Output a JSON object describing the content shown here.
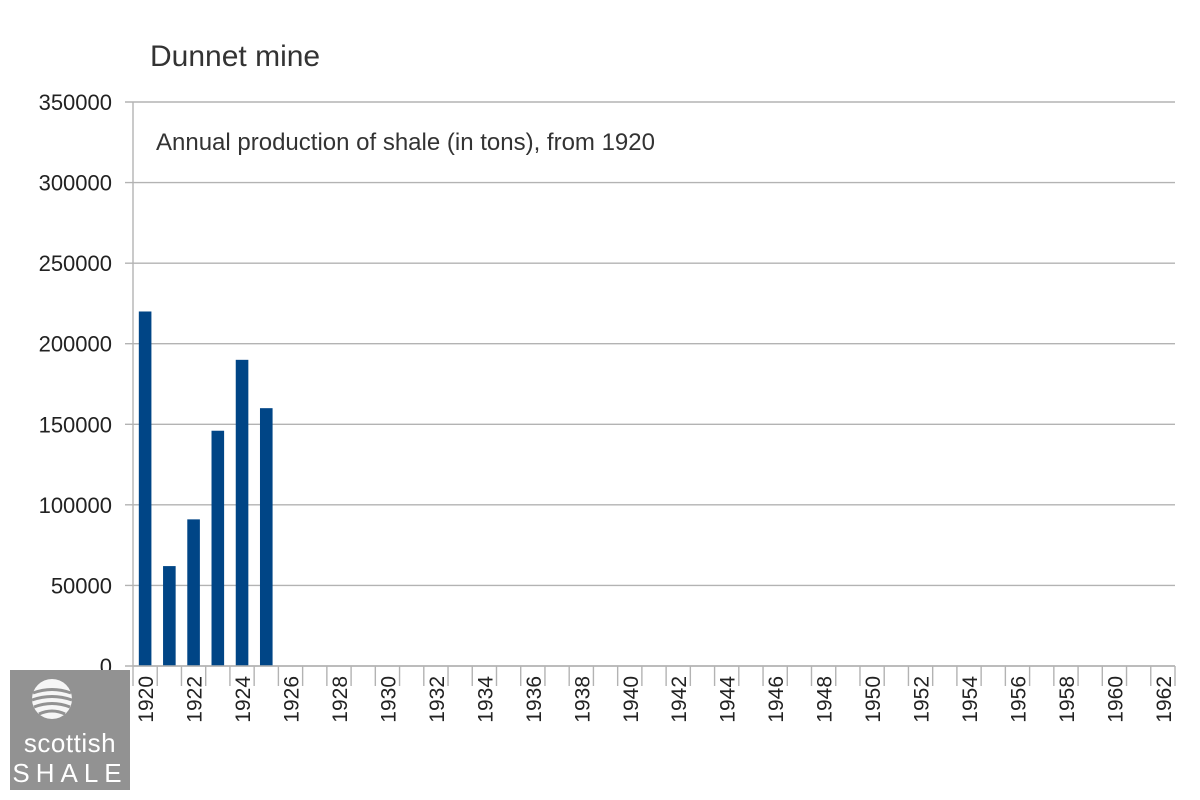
{
  "chart_data": {
    "type": "bar",
    "title": "Dunnet mine",
    "subtitle": "Annual production of shale (in tons), from 1920",
    "xlabel": "",
    "ylabel": "",
    "ylim": [
      0,
      350000
    ],
    "yticks": [
      "0",
      "50000",
      "100000",
      "150000",
      "200000",
      "250000",
      "300000",
      "350000"
    ],
    "categories": [
      "1920",
      "1921",
      "1922",
      "1923",
      "1924",
      "1925",
      "1926",
      "1927",
      "1928",
      "1929",
      "1930",
      "1931",
      "1932",
      "1933",
      "1934",
      "1935",
      "1936",
      "1937",
      "1938",
      "1939",
      "1940",
      "1941",
      "1942",
      "1943",
      "1944",
      "1945",
      "1946",
      "1947",
      "1948",
      "1949",
      "1950",
      "1951",
      "1952",
      "1953",
      "1954",
      "1955",
      "1956",
      "1957",
      "1958",
      "1959",
      "1960",
      "1961",
      "1962"
    ],
    "tick_labels": [
      "1920",
      "1922",
      "1924",
      "1926",
      "1928",
      "1930",
      "1932",
      "1934",
      "1936",
      "1938",
      "1940",
      "1942",
      "1944",
      "1946",
      "1948",
      "1950",
      "1952",
      "1954",
      "1956",
      "1958",
      "1960",
      "1962"
    ],
    "values": [
      220000,
      62000,
      91000,
      146000,
      190000,
      160000,
      0,
      0,
      0,
      0,
      0,
      0,
      0,
      0,
      0,
      0,
      0,
      0,
      0,
      0,
      0,
      0,
      0,
      0,
      0,
      0,
      0,
      0,
      0,
      0,
      0,
      0,
      0,
      0,
      0,
      0,
      0,
      0,
      0,
      0,
      0,
      0,
      0
    ],
    "bar_color": "#004586",
    "grid": true,
    "legend": "none"
  },
  "logo": {
    "line1": "scottish",
    "line2": "SHALE",
    "background": "#929292"
  }
}
